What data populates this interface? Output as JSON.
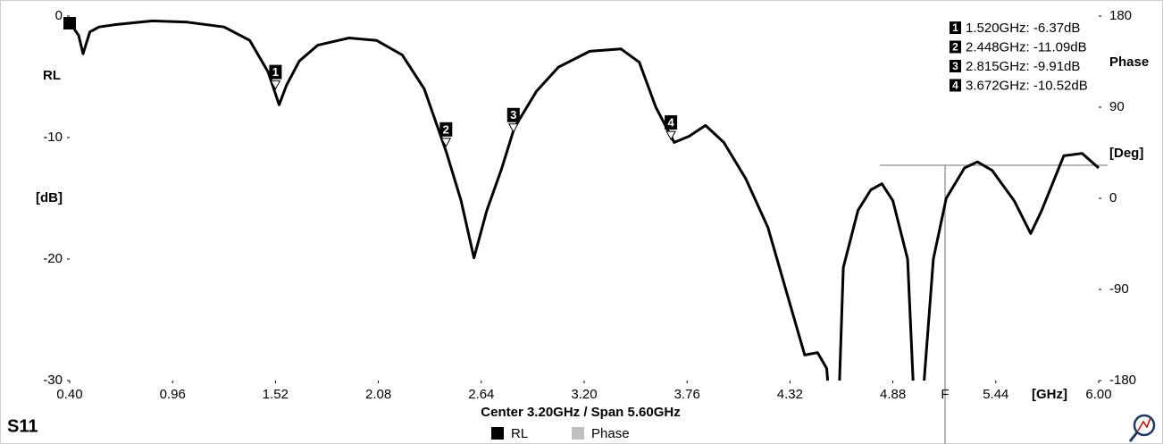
{
  "chart_data": {
    "type": "line",
    "title": "S11",
    "subtitle": "Center 3.20GHz / Span 5.60GHz",
    "y_label_top": "RL",
    "y_label_bottom": "[dB]",
    "y2_label_top": "Phase",
    "y2_label_bottom": "[Deg]",
    "x_unit_label": "[GHz]",
    "cursor_label": "F",
    "xlim": [
      0.4,
      6.0
    ],
    "xticks": [
      {
        "value": 0.4,
        "label": "0.40"
      },
      {
        "value": 0.96,
        "label": "0.96"
      },
      {
        "value": 1.52,
        "label": "1.52"
      },
      {
        "value": 2.08,
        "label": "2.08"
      },
      {
        "value": 2.64,
        "label": "2.64"
      },
      {
        "value": 3.2,
        "label": "3.20"
      },
      {
        "value": 3.76,
        "label": "3.76"
      },
      {
        "value": 4.32,
        "label": "4.32"
      },
      {
        "value": 4.88,
        "label": "4.88"
      },
      {
        "value": 5.44,
        "label": "5.44"
      },
      {
        "value": 6.0,
        "label": "6.00"
      }
    ],
    "ylim": [
      -30,
      0
    ],
    "yticks": [
      0,
      -10,
      -20,
      -30
    ],
    "y2lim": [
      -180,
      180
    ],
    "y2ticks": [
      180,
      90,
      0,
      -90,
      -180
    ],
    "legend": [
      {
        "name": "RL",
        "color": "#000000"
      },
      {
        "name": "Phase",
        "color": "#c0c0c0"
      }
    ],
    "series": [
      {
        "name": "RL",
        "color": "#000000",
        "x": [
          0.4,
          0.449,
          0.473,
          0.51,
          0.56,
          0.65,
          0.85,
          1.04,
          1.24,
          1.38,
          1.48,
          1.54,
          1.58,
          1.65,
          1.75,
          1.92,
          2.07,
          2.21,
          2.33,
          2.45,
          2.53,
          2.6,
          2.67,
          2.75,
          2.82,
          2.94,
          3.06,
          3.23,
          3.4,
          3.5,
          3.59,
          3.69,
          3.77,
          3.86,
          3.96,
          4.08,
          4.2,
          4.32,
          4.4,
          4.47,
          4.52,
          4.525,
          null,
          4.59,
          4.61,
          4.69,
          4.76,
          4.82,
          4.88,
          4.96,
          4.99,
          null,
          5.05,
          5.1,
          5.17,
          5.27,
          5.34,
          5.42,
          5.54,
          5.63,
          5.69,
          5.81,
          5.91,
          6.0
        ],
        "values": [
          -0.5,
          -1.6,
          -3.1,
          -1.3,
          -0.9,
          -0.7,
          -0.4,
          -0.5,
          -0.9,
          -2.0,
          -4.6,
          -7.3,
          -5.7,
          -3.7,
          -2.4,
          -1.8,
          -2.0,
          -3.2,
          -6.0,
          -11.2,
          -15.2,
          -19.9,
          -16.0,
          -12.6,
          -9.2,
          -6.2,
          -4.2,
          -2.9,
          -2.7,
          -3.8,
          -7.5,
          -10.4,
          -9.9,
          -9.0,
          -10.4,
          -13.4,
          -17.4,
          -23.7,
          -27.9,
          -27.7,
          -29.0,
          -30,
          null,
          -30,
          -20.7,
          -16.0,
          -14.3,
          -13.8,
          -15.2,
          -20.0,
          -30,
          null,
          -30,
          -20.0,
          -15.0,
          -12.5,
          -12.0,
          -12.7,
          -15.2,
          -17.9,
          -16.0,
          -11.5,
          -11.3,
          -12.5
        ]
      }
    ],
    "markers": [
      {
        "label": "1",
        "freq": 1.52,
        "value": -6.37,
        "text": "1.520GHz: -6.37dB"
      },
      {
        "label": "2",
        "freq": 2.448,
        "value": -11.09,
        "text": "2.448GHz: -11.09dB"
      },
      {
        "label": "3",
        "freq": 2.815,
        "value": -9.91,
        "text": "2.815GHz: -9.91dB"
      },
      {
        "label": "4",
        "freq": 3.672,
        "value": -10.52,
        "text": "3.672GHz: -10.52dB"
      }
    ]
  }
}
